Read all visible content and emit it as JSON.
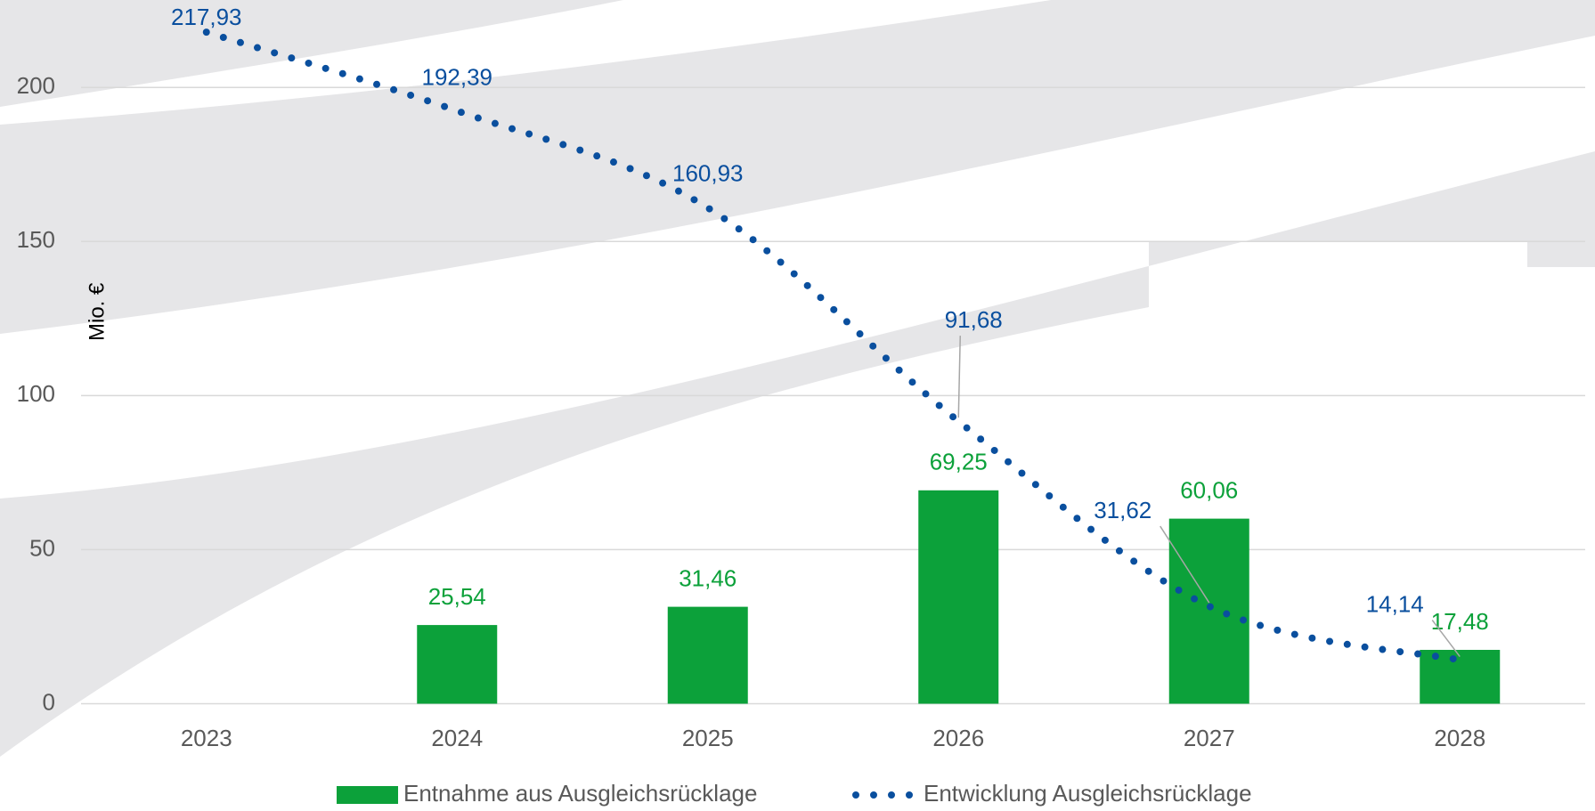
{
  "chart_data": {
    "type": "bar-line",
    "y_label": "Mio. €",
    "categories": [
      "2023",
      "2024",
      "2025",
      "2026",
      "2027",
      "2028"
    ],
    "series": [
      {
        "name": "Entnahme aus Ausgleichsrücklage",
        "type": "bar",
        "color": "#0ca13a",
        "values": [
          null,
          25.54,
          31.46,
          69.25,
          60.06,
          17.48
        ],
        "value_labels": [
          null,
          "25,54",
          "31,46",
          "69,25",
          "60,06",
          "17,48"
        ]
      },
      {
        "name": "Entwicklung Ausgleichsrücklage",
        "type": "line",
        "color": "#0a4f9e",
        "values": [
          217.93,
          192.39,
          160.93,
          91.68,
          31.62,
          14.14
        ],
        "value_labels": [
          "217,93",
          "192,39",
          "160,93",
          "91,68",
          "31,62",
          "14,14"
        ]
      }
    ],
    "ylim": [
      0,
      225
    ],
    "yticks": [
      0,
      50,
      100,
      150,
      200
    ],
    "grid": true
  }
}
